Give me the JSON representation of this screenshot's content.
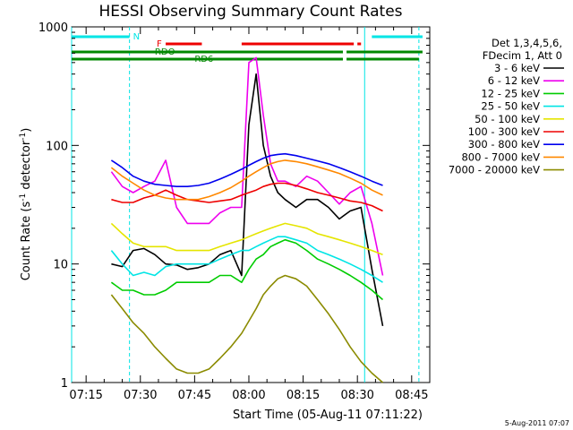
{
  "chart_data": {
    "type": "line",
    "title": "HESSI Observing Summary Count Rates",
    "xlabel": "Start Time (05-Aug-11 07:11:22)",
    "ylabel_parts": [
      "Count Rate (s",
      "-1",
      " detector",
      "-1",
      ")"
    ],
    "y_scale": "log",
    "ylim": [
      1,
      1000
    ],
    "xlim_minutes": [
      "07:11",
      "08:50"
    ],
    "y_ticks": [
      "1",
      "10",
      "100",
      "1000"
    ],
    "x_ticks": [
      "07:15",
      "07:30",
      "07:45",
      "08:00",
      "08:15",
      "08:30",
      "08:45"
    ],
    "legend_position": "right",
    "legend_header": [
      "Det 1,3,4,5,6,",
      "FDecim 1, Att 0"
    ],
    "footer_stamp": "5-Aug-2011 07:07",
    "flags": [
      {
        "label": "N",
        "color": "#00e5e5",
        "segments": [
          [
            "07:11",
            "07:27"
          ],
          [
            "08:34",
            "08:48"
          ]
        ]
      },
      {
        "label": "F",
        "color": "#ee0000",
        "segments": [
          [
            "07:37",
            "07:47"
          ],
          [
            "07:58",
            "08:29"
          ],
          [
            "08:30",
            "08:31"
          ]
        ]
      },
      {
        "label": "RDO",
        "color": "#008800",
        "segments": [
          [
            "07:11",
            "08:26"
          ],
          [
            "08:27",
            "08:48"
          ]
        ]
      },
      {
        "label": "RD6",
        "color": "#008800",
        "segments": [
          [
            "07:11",
            "08:26"
          ],
          [
            "08:27",
            "08:47"
          ]
        ]
      }
    ],
    "vertical_markers": [
      {
        "time": "07:11",
        "style": "solid",
        "color": "#00e5e5"
      },
      {
        "time": "07:27",
        "style": "dashed",
        "color": "#00e5e5"
      },
      {
        "time": "08:32",
        "style": "solid",
        "color": "#00e5e5"
      },
      {
        "time": "08:47",
        "style": "dashed",
        "color": "#00e5e5"
      }
    ],
    "x_times": [
      "07:22",
      "07:25",
      "07:28",
      "07:31",
      "07:34",
      "07:37",
      "07:40",
      "07:43",
      "07:46",
      "07:49",
      "07:52",
      "07:55",
      "07:58",
      "08:00",
      "08:02",
      "08:04",
      "08:06",
      "08:08",
      "08:10",
      "08:13",
      "08:16",
      "08:19",
      "08:22",
      "08:25",
      "08:28",
      "08:31",
      "08:34",
      "08:37"
    ],
    "series": [
      {
        "name": "3 - 6 keV",
        "color": "#000000",
        "values": [
          10,
          9.5,
          13,
          13.5,
          12,
          10,
          9.8,
          9,
          9.3,
          10,
          12,
          13,
          8,
          150,
          400,
          100,
          55,
          40,
          35,
          30,
          35,
          35,
          30,
          24,
          28,
          30,
          9,
          3
        ]
      },
      {
        "name": "6 - 12 keV",
        "color": "#ee00ee",
        "values": [
          60,
          45,
          40,
          45,
          50,
          75,
          30,
          22,
          22,
          22,
          27,
          30,
          30,
          500,
          550,
          180,
          70,
          50,
          50,
          45,
          55,
          50,
          40,
          32,
          40,
          45,
          22,
          8
        ]
      },
      {
        "name": "12 - 25 keV",
        "color": "#00cc00",
        "values": [
          7,
          6,
          6,
          5.5,
          5.5,
          6,
          7,
          7,
          7,
          7,
          8,
          8,
          7,
          9,
          11,
          12,
          14,
          15,
          16,
          15,
          13,
          11,
          10,
          9,
          8,
          7,
          6,
          5
        ]
      },
      {
        "name": "25 - 50 keV",
        "color": "#00e5e5",
        "values": [
          13,
          10,
          8,
          8.5,
          8,
          9.5,
          10,
          10,
          10,
          10,
          11,
          12,
          13,
          13,
          14,
          15,
          16,
          17,
          17,
          16,
          15,
          13,
          12,
          11,
          10,
          9,
          8,
          7
        ]
      },
      {
        "name": "50 - 100 keV",
        "color": "#e5e500",
        "values": [
          22,
          18,
          15,
          14,
          14,
          14,
          13,
          13,
          13,
          13,
          14,
          15,
          16,
          17,
          18,
          19,
          20,
          21,
          22,
          21,
          20,
          18,
          17,
          16,
          15,
          14,
          13,
          12
        ]
      },
      {
        "name": "100 - 300 keV",
        "color": "#ee0000",
        "values": [
          35,
          33,
          33,
          36,
          38,
          42,
          38,
          35,
          34,
          33,
          34,
          35,
          38,
          40,
          42,
          45,
          47,
          48,
          48,
          46,
          43,
          40,
          38,
          36,
          34,
          33,
          31,
          28
        ]
      },
      {
        "name": "300 - 800 keV",
        "color": "#0000ee",
        "values": [
          75,
          65,
          55,
          50,
          47,
          46,
          45,
          45,
          46,
          48,
          52,
          57,
          63,
          68,
          73,
          78,
          82,
          84,
          85,
          82,
          78,
          74,
          70,
          65,
          60,
          55,
          50,
          46
        ]
      },
      {
        "name": "800 - 7000 keV",
        "color": "#ff8800",
        "values": [
          65,
          55,
          48,
          42,
          38,
          36,
          35,
          35,
          35,
          37,
          40,
          44,
          50,
          55,
          60,
          65,
          70,
          73,
          75,
          73,
          70,
          66,
          62,
          58,
          53,
          48,
          42,
          38
        ]
      },
      {
        "name": "7000 - 20000 keV",
        "color": "#8b8b00",
        "values": [
          5.5,
          4.2,
          3.2,
          2.6,
          2,
          1.6,
          1.3,
          1.2,
          1.2,
          1.3,
          1.6,
          2,
          2.6,
          3.3,
          4.2,
          5.5,
          6.5,
          7.5,
          8,
          7.5,
          6.5,
          5,
          3.8,
          2.8,
          2,
          1.5,
          1.2,
          1
        ]
      }
    ]
  }
}
